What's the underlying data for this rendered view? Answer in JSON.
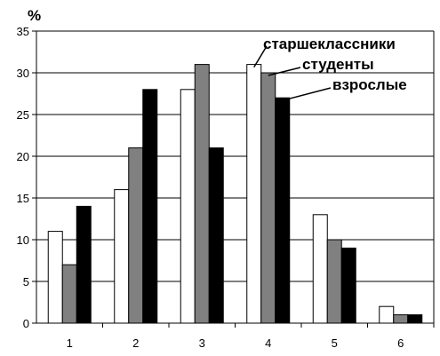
{
  "chart_data": {
    "type": "bar",
    "title": "",
    "xlabel": "",
    "ylabel": "",
    "y_unit": "%",
    "categories": [
      "1",
      "2",
      "3",
      "4",
      "5",
      "6"
    ],
    "ylim": [
      0,
      35
    ],
    "yticks": [
      "0",
      "5",
      "10",
      "15",
      "20",
      "25",
      "30",
      "35"
    ],
    "grid": true,
    "series": [
      {
        "name": "старшеклассники",
        "color": "#ffffff",
        "values": [
          11,
          16,
          28,
          31,
          13,
          2
        ]
      },
      {
        "name": "студенты",
        "color": "#808080",
        "values": [
          7,
          21,
          31,
          30,
          10,
          1
        ]
      },
      {
        "name": "взрослые",
        "color": "#000000",
        "values": [
          14,
          28,
          21,
          27,
          9,
          1
        ]
      }
    ],
    "legend": "callout labels pointing to category 4 bars"
  }
}
